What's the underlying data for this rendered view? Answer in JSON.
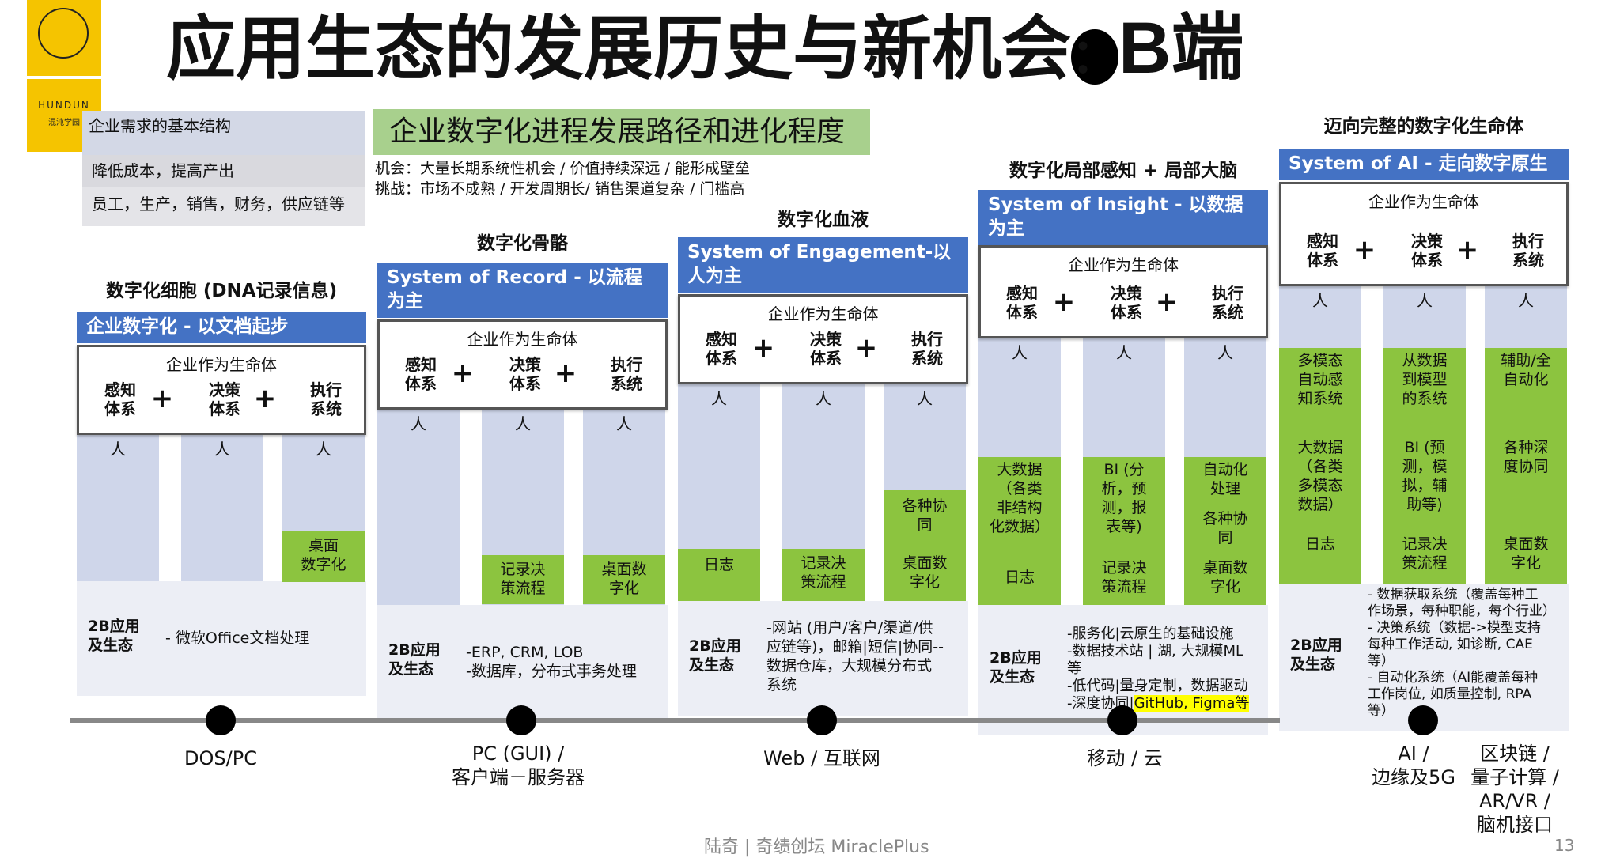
{
  "logo": {
    "name": "HUNDUN",
    "sub": "混沌学园"
  },
  "title": {
    "main": "应用生态的发展历史与新机会",
    "colon": "：",
    "suffix": "B端"
  },
  "needs": {
    "header": "企业需求的基本结构",
    "line1": "降低成本，提高产出",
    "line2": "员工，生产，销售，财务，供应链等"
  },
  "process": {
    "banner": "企业数字化进程发展路径和进化程度",
    "opportunity": "机会：大量长期系统性机会 / 价值持续深远 / 能形成壁垒",
    "challenge": "挑战：市场不成熟 / 开发周期长/ 销售渠道复杂 / 门槛高"
  },
  "common": {
    "org": "企业作为生命体",
    "sense": "感知\n体系",
    "decide": "决策\n体系",
    "execute": "执行\n系统",
    "plus": "+",
    "person": "人",
    "eco_label": "2B应用\n及生态"
  },
  "columns": [
    {
      "label": "数字化细胞 (DNA记录信息)",
      "bar": "企业数字化 - 以文档起步",
      "cells": {
        "c3": "桌面\n数字化"
      },
      "eco": "- 微软Office文档处理"
    },
    {
      "label": "数字化骨骼",
      "bar": "System of Record - 以流程为主",
      "cells": {
        "c2": "记录决\n策流程",
        "c3": "桌面数\n字化"
      },
      "eco": "-ERP, CRM, LOB\n-数据库，分布式事务处理"
    },
    {
      "label": "数字化血液",
      "bar": "System of Engagement-以人为主",
      "cells": {
        "c1": "日志",
        "c2": "记录决\n策流程",
        "c3a": "各种协\n同",
        "c3b": "桌面数\n字化"
      },
      "eco": "-网站 (用户/客户/渠道/供\n应链等)，邮箱|短信|协同--\n数据仓库，大规模分布式\n系统"
    },
    {
      "label": "数字化局部感知 + 局部大脑",
      "bar": "System of Insight - 以数据为主",
      "cells": {
        "c1a": "大数据\n（各类\n非结构\n化数据）",
        "c1b": "日志",
        "c2a": "BI (分\n析，预\n测，报\n表等)",
        "c2b": "记录决\n策流程",
        "c3a": "自动化\n处理",
        "c3b": "各种协\n同",
        "c3c": "桌面数\n字化"
      },
      "eco_lines": [
        "-服务化|云原生的基础设施",
        "-数据技术站 | 湖, 大规模ML",
        "等",
        "-低代码|量身定制，数据驱动"
      ],
      "eco_last_prefix": "-深度协同|",
      "eco_highlight": "GitHub, Figma等"
    },
    {
      "label": "迈向完整的数字化生命体",
      "bar": "System of AI  - 走向数字原生",
      "cells": {
        "c1a": "多模态\n自动感\n知系统",
        "c1b": "大数据\n（各类\n多模态\n数据）",
        "c1c": "日志",
        "c2a": "从数据\n到模型\n的系统",
        "c2b": "BI (预\n测，模\n拟，辅\n助等)",
        "c2c": "记录决\n策流程",
        "c3a": "辅助/全\n自动化",
        "c3b": "各种深\n度协同",
        "c3c": "桌面数\n字化"
      },
      "eco": "- 数据获取系统（覆盖每种工\n作场景，每种职能，每个行业）\n- 决策系统（数据->模型支持\n每种工作活动, 如诊断, CAE\n等）\n- 自动化系统（AI能覆盖每种\n工作岗位, 如质量控制, RPA\n等）"
    }
  ],
  "eras": [
    "DOS/PC",
    "PC (GUI) /\n客户端－服务器",
    "Web / 互联网",
    "移动 / 云",
    "AI /\n边缘及5G",
    "区块链 /\n量子计算 /\nAR/VR /\n脑机接口"
  ],
  "footer": "陆奇 | 奇绩创坛 MiraclePlus",
  "page_number": "13",
  "colors": {
    "blue": "#4472c4",
    "green": "#8cc43f",
    "pillar": "#cfd6ea",
    "logo": "#f5c400",
    "banner": "#a8d08d"
  }
}
